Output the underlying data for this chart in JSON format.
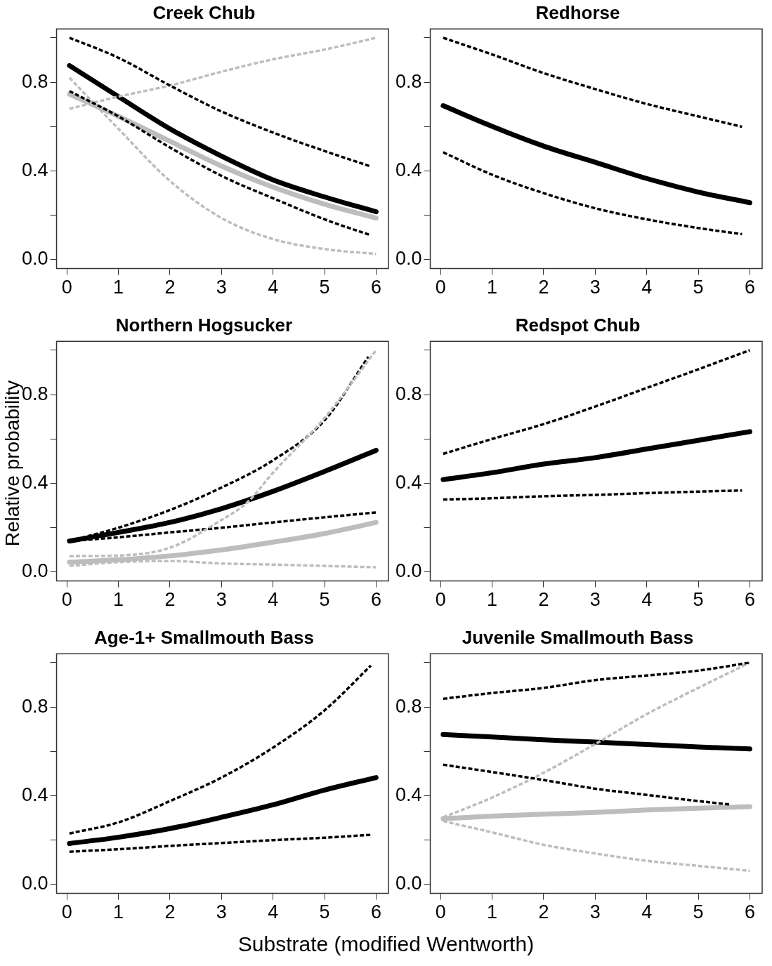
{
  "chart_data": [
    {
      "type": "line",
      "title": "Creek Chub",
      "xlim": [
        -0.2,
        6.24
      ],
      "ylim": [
        -0.04,
        1.04
      ],
      "xticks": [
        0,
        1,
        2,
        3,
        4,
        5,
        6
      ],
      "yticks": [
        {
          "value": 0,
          "label": "0.0"
        },
        {
          "value": 0.2,
          "label": null
        },
        {
          "value": 0.4,
          "label": "0.4"
        },
        {
          "value": 0.6,
          "label": null
        },
        {
          "value": 0.8,
          "label": "0.8"
        },
        {
          "value": 1,
          "label": null
        }
      ],
      "series": [
        {
          "color": "#000000",
          "line_style": "dashed",
          "x": [
            0.05,
            1,
            2,
            3,
            4,
            5,
            5.9
          ],
          "values": [
            1.0,
            0.91,
            0.785,
            0.668,
            0.573,
            0.49,
            0.42
          ]
        },
        {
          "color": "#000000",
          "line_style": "dashed",
          "x": [
            0.05,
            1,
            2,
            3,
            4,
            5,
            5.9
          ],
          "values": [
            0.76,
            0.646,
            0.506,
            0.378,
            0.277,
            0.182,
            0.11
          ]
        },
        {
          "color": "#bdbdbd",
          "line_style": "dashed",
          "x": [
            0.05,
            1,
            2,
            3,
            4,
            5,
            6
          ],
          "values": [
            0.68,
            0.735,
            0.785,
            0.847,
            0.903,
            0.947,
            1.0
          ]
        },
        {
          "color": "#bdbdbd",
          "line_style": "dashed",
          "x": [
            0.05,
            1,
            2,
            3,
            4,
            5,
            6
          ],
          "values": [
            0.82,
            0.59,
            0.355,
            0.188,
            0.093,
            0.048,
            0.026
          ]
        },
        {
          "color": "#bdbdbd",
          "line_style": "solid",
          "x": [
            0.05,
            1,
            2,
            3,
            4,
            5,
            6
          ],
          "values": [
            0.746,
            0.646,
            0.534,
            0.422,
            0.327,
            0.25,
            0.188
          ]
        },
        {
          "color": "#000000",
          "line_style": "solid",
          "x": [
            0.05,
            1,
            2,
            3,
            4,
            5,
            6
          ],
          "values": [
            0.875,
            0.735,
            0.59,
            0.467,
            0.36,
            0.283,
            0.216
          ]
        }
      ]
    },
    {
      "type": "line",
      "title": "Redhorse",
      "xlim": [
        -0.2,
        6.24
      ],
      "ylim": [
        -0.04,
        1.04
      ],
      "xticks": [
        0,
        1,
        2,
        3,
        4,
        5,
        6
      ],
      "yticks": [
        {
          "value": 0,
          "label": "0.0"
        },
        {
          "value": 0.2,
          "label": null
        },
        {
          "value": 0.4,
          "label": "0.4"
        },
        {
          "value": 0.6,
          "label": null
        },
        {
          "value": 0.8,
          "label": "0.8"
        },
        {
          "value": 1,
          "label": null
        }
      ],
      "series": [
        {
          "color": "#000000",
          "line_style": "dashed",
          "x": [
            0.05,
            1,
            2,
            3,
            4,
            5,
            5.85
          ],
          "values": [
            1.0,
            0.925,
            0.841,
            0.769,
            0.702,
            0.646,
            0.599
          ]
        },
        {
          "color": "#000000",
          "line_style": "dashed",
          "x": [
            0.05,
            1,
            2,
            3,
            4,
            5,
            5.85
          ],
          "values": [
            0.484,
            0.383,
            0.3,
            0.232,
            0.182,
            0.143,
            0.115
          ]
        },
        {
          "color": "#000000",
          "line_style": "solid",
          "x": [
            0.05,
            1,
            2,
            3,
            4,
            5,
            6
          ],
          "values": [
            0.694,
            0.601,
            0.512,
            0.439,
            0.366,
            0.305,
            0.257
          ]
        }
      ]
    },
    {
      "type": "line",
      "title": "Northern Hogsucker",
      "ylabel": "Relative probability",
      "xlim": [
        -0.2,
        6.24
      ],
      "ylim": [
        -0.04,
        1.04
      ],
      "xticks": [
        0,
        1,
        2,
        3,
        4,
        5,
        6
      ],
      "yticks": [
        {
          "value": 0,
          "label": "0.0"
        },
        {
          "value": 0.2,
          "label": null
        },
        {
          "value": 0.4,
          "label": "0.4"
        },
        {
          "value": 0.6,
          "label": null
        },
        {
          "value": 0.8,
          "label": "0.8"
        },
        {
          "value": 1,
          "label": null
        }
      ],
      "series": [
        {
          "color": "#bdbdbd",
          "line_style": "dashed",
          "x": [
            0.05,
            1,
            2,
            3,
            3.5,
            4,
            5,
            6
          ],
          "values": [
            0.072,
            0.075,
            0.11,
            0.235,
            0.314,
            0.448,
            0.695,
            1.0
          ]
        },
        {
          "color": "#bdbdbd",
          "line_style": "dashed",
          "x": [
            0.05,
            1,
            2,
            3,
            4,
            5,
            6
          ],
          "values": [
            0.028,
            0.045,
            0.05,
            0.039,
            0.034,
            0.028,
            0.022
          ]
        },
        {
          "color": "#000000",
          "line_style": "dashed",
          "x": [
            0.05,
            1,
            2,
            3,
            4,
            5,
            5.85
          ],
          "values": [
            0.14,
            0.2,
            0.28,
            0.381,
            0.504,
            0.684,
            0.97
          ]
        },
        {
          "color": "#000000",
          "line_style": "dashed",
          "x": [
            0.05,
            1,
            2,
            3,
            4,
            5,
            6
          ],
          "values": [
            0.14,
            0.157,
            0.179,
            0.2,
            0.224,
            0.247,
            0.269
          ]
        },
        {
          "color": "#bdbdbd",
          "line_style": "solid",
          "x": [
            0.05,
            1,
            2,
            3,
            4,
            5,
            6
          ],
          "values": [
            0.045,
            0.056,
            0.073,
            0.1,
            0.135,
            0.174,
            0.224
          ]
        },
        {
          "color": "#000000",
          "line_style": "solid",
          "x": [
            0.05,
            1,
            2,
            3,
            4,
            5,
            6
          ],
          "values": [
            0.14,
            0.179,
            0.224,
            0.286,
            0.364,
            0.454,
            0.549
          ]
        }
      ]
    },
    {
      "type": "line",
      "title": "Redspot Chub",
      "xlim": [
        -0.2,
        6.24
      ],
      "ylim": [
        -0.04,
        1.04
      ],
      "xticks": [
        0,
        1,
        2,
        3,
        4,
        5,
        6
      ],
      "yticks": [
        {
          "value": 0,
          "label": "0.0"
        },
        {
          "value": 0.2,
          "label": null
        },
        {
          "value": 0.4,
          "label": "0.4"
        },
        {
          "value": 0.6,
          "label": null
        },
        {
          "value": 0.8,
          "label": "0.8"
        },
        {
          "value": 1,
          "label": null
        }
      ],
      "series": [
        {
          "color": "#000000",
          "line_style": "dashed",
          "x": [
            0.05,
            1,
            2,
            3,
            4,
            5,
            6
          ],
          "values": [
            0.533,
            0.6,
            0.667,
            0.746,
            0.83,
            0.914,
            1.0
          ]
        },
        {
          "color": "#000000",
          "line_style": "dashed",
          "x": [
            0.05,
            1,
            2,
            3,
            4,
            5,
            5.85
          ],
          "values": [
            0.327,
            0.333,
            0.342,
            0.348,
            0.356,
            0.363,
            0.368
          ]
        },
        {
          "color": "#000000",
          "line_style": "solid",
          "x": [
            0.05,
            1,
            2,
            3,
            4,
            5,
            6
          ],
          "values": [
            0.417,
            0.448,
            0.487,
            0.516,
            0.555,
            0.594,
            0.633
          ]
        }
      ]
    },
    {
      "type": "line",
      "title": "Age-1+ Smallmouth Bass",
      "xlabel": "Substrate (modified Wentworth)",
      "xlim": [
        -0.2,
        6.24
      ],
      "ylim": [
        -0.04,
        1.04
      ],
      "xticks": [
        0,
        1,
        2,
        3,
        4,
        5,
        6
      ],
      "yticks": [
        {
          "value": 0,
          "label": "0.0"
        },
        {
          "value": 0.2,
          "label": null
        },
        {
          "value": 0.4,
          "label": "0.4"
        },
        {
          "value": 0.6,
          "label": null
        },
        {
          "value": 0.8,
          "label": "0.8"
        },
        {
          "value": 1,
          "label": null
        }
      ],
      "series": [
        {
          "color": "#000000",
          "line_style": "dashed",
          "x": [
            0.05,
            1,
            2,
            3,
            4,
            5,
            5.9
          ],
          "values": [
            0.23,
            0.28,
            0.376,
            0.482,
            0.617,
            0.785,
            0.987
          ]
        },
        {
          "color": "#000000",
          "line_style": "dashed",
          "x": [
            0.05,
            1,
            2,
            3,
            4,
            5,
            5.9
          ],
          "values": [
            0.148,
            0.159,
            0.174,
            0.187,
            0.2,
            0.211,
            0.224
          ]
        },
        {
          "color": "#000000",
          "line_style": "solid",
          "x": [
            0.05,
            1,
            2,
            3,
            4,
            5,
            6
          ],
          "values": [
            0.185,
            0.213,
            0.252,
            0.303,
            0.359,
            0.426,
            0.482
          ]
        }
      ]
    },
    {
      "type": "line",
      "title": "Juvenile Smallmouth Bass",
      "xlim": [
        -0.2,
        6.24
      ],
      "ylim": [
        -0.04,
        1.04
      ],
      "xticks": [
        0,
        1,
        2,
        3,
        4,
        5,
        6
      ],
      "yticks": [
        {
          "value": 0,
          "label": "0.0"
        },
        {
          "value": 0.2,
          "label": null
        },
        {
          "value": 0.4,
          "label": "0.4"
        },
        {
          "value": 0.6,
          "label": null
        },
        {
          "value": 0.8,
          "label": "0.8"
        },
        {
          "value": 1,
          "label": null
        }
      ],
      "series": [
        {
          "color": "#000000",
          "line_style": "dashed",
          "x": [
            0.05,
            1,
            2,
            3,
            4,
            5,
            6
          ],
          "values": [
            0.837,
            0.863,
            0.886,
            0.921,
            0.942,
            0.964,
            1.0
          ]
        },
        {
          "color": "#000000",
          "line_style": "dashed",
          "x": [
            0.05,
            1,
            2,
            3,
            4,
            5,
            5.6
          ],
          "values": [
            0.54,
            0.507,
            0.471,
            0.432,
            0.404,
            0.376,
            0.361
          ]
        },
        {
          "color": "#bdbdbd",
          "line_style": "dashed",
          "x": [
            0.05,
            1,
            2,
            3,
            4,
            5,
            6
          ],
          "values": [
            0.303,
            0.392,
            0.504,
            0.633,
            0.768,
            0.886,
            1.0
          ]
        },
        {
          "color": "#bdbdbd",
          "line_style": "dashed",
          "x": [
            0.05,
            1,
            2,
            3,
            4,
            5,
            6
          ],
          "values": [
            0.286,
            0.235,
            0.179,
            0.14,
            0.107,
            0.084,
            0.062
          ]
        },
        {
          "color": "#bdbdbd",
          "line_style": "solid",
          "x": [
            0.05,
            1,
            2,
            3,
            4,
            5,
            6
          ],
          "values": [
            0.297,
            0.308,
            0.317,
            0.325,
            0.336,
            0.344,
            0.351
          ]
        },
        {
          "color": "#000000",
          "line_style": "solid",
          "x": [
            0.05,
            1,
            2,
            3,
            4,
            5,
            6
          ],
          "values": [
            0.676,
            0.665,
            0.652,
            0.642,
            0.631,
            0.62,
            0.611
          ]
        }
      ]
    }
  ]
}
